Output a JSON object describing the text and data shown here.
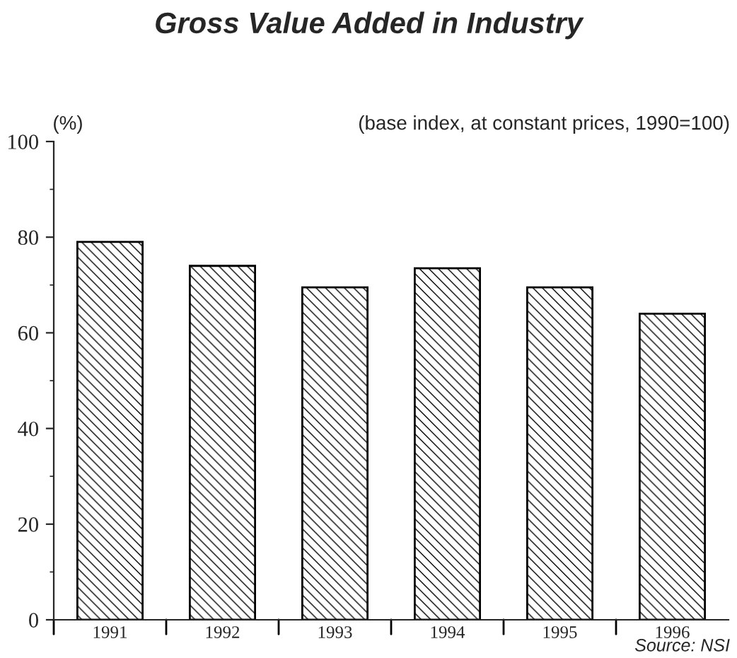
{
  "chart_data": {
    "type": "bar",
    "title": "Gross Value Added in Industry",
    "subtitle": "(base index, at constant prices, 1990=100)",
    "ylabel": "(%)",
    "annotations": [
      "Source: NSI"
    ],
    "categories": [
      "1991",
      "1992",
      "1993",
      "1994",
      "1995",
      "1996"
    ],
    "values": [
      79,
      74,
      69.5,
      73.5,
      69.5,
      64
    ],
    "ylim": [
      0,
      100
    ],
    "yticks": [
      0,
      {
        "value": 10,
        "label": null
      },
      20,
      {
        "value": 30,
        "label": null
      },
      40,
      {
        "value": 50,
        "label": null
      },
      60,
      {
        "value": 70,
        "label": null
      },
      80,
      {
        "value": 90,
        "label": null
      },
      100
    ],
    "grid": false,
    "legend": false
  }
}
